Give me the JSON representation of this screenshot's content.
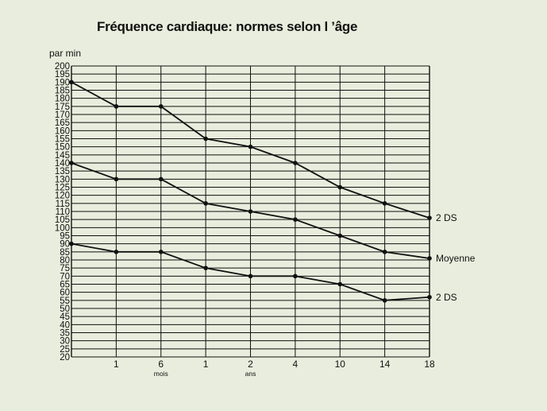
{
  "chart_data": {
    "type": "line",
    "title": "Fréquence cardiaque: normes selon l ’âge",
    "ylabel": "par min",
    "ylim": [
      20,
      200
    ],
    "y_ticks": [
      200,
      195,
      190,
      185,
      180,
      175,
      170,
      165,
      160,
      155,
      150,
      145,
      140,
      135,
      130,
      125,
      120,
      115,
      110,
      105,
      100,
      95,
      90,
      85,
      80,
      75,
      70,
      65,
      60,
      55,
      50,
      45,
      40,
      35,
      30,
      25,
      20
    ],
    "x_tick_labels": [
      "1",
      "6",
      "1",
      "2",
      "4",
      "10",
      "14",
      "18"
    ],
    "x_unit_labels": [
      {
        "text": "mois"
      },
      {
        "text": "ans"
      }
    ],
    "x": [
      "0",
      "1 mois",
      "6 mois",
      "1 an",
      "2 ans",
      "4 ans",
      "10 ans",
      "14 ans",
      "18 ans"
    ],
    "series": [
      {
        "name": "2 DS",
        "values": [
          190,
          175,
          175,
          155,
          150,
          140,
          125,
          115,
          106
        ]
      },
      {
        "name": "Moyenne",
        "values": [
          140,
          130,
          130,
          115,
          110,
          105,
          95,
          85,
          81
        ]
      },
      {
        "name": "2 DS",
        "values": [
          90,
          85,
          85,
          75,
          70,
          70,
          65,
          55,
          57
        ]
      }
    ],
    "grid": true,
    "legend": "labels at right end of each line"
  },
  "colors": {
    "background": "#e9eddd",
    "ink": "#111111"
  }
}
